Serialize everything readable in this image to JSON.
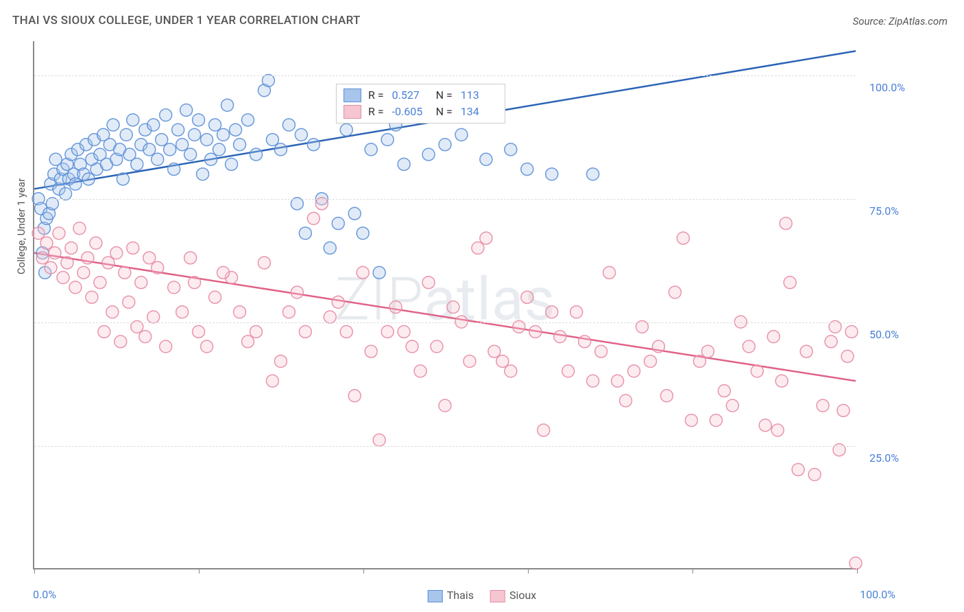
{
  "title": "THAI VS SIOUX COLLEGE, UNDER 1 YEAR CORRELATION CHART",
  "source": "Source: ZipAtlas.com",
  "y_axis_title": "College, Under 1 year",
  "watermark": "ZIPatlas",
  "chart": {
    "type": "scatter",
    "xlim": [
      0,
      100
    ],
    "ylim": [
      0,
      107
    ],
    "y_ticks": [
      25,
      50,
      75,
      100
    ],
    "y_tick_labels": [
      "25.0%",
      "50.0%",
      "75.0%",
      "100.0%"
    ],
    "x_ticks": [
      0,
      20,
      40,
      60,
      80,
      100
    ],
    "x_labels": {
      "min": "0.0%",
      "max": "100.0%"
    },
    "grid_color": "#dddddd",
    "axis_color": "#888888",
    "tick_label_color": "#4a7fd8",
    "background_color": "#ffffff",
    "marker_radius": 9,
    "marker_opacity": 0.35,
    "marker_stroke_opacity": 0.9,
    "line_width": 2.5,
    "series": [
      {
        "name": "Thais",
        "color_fill": "#a8c5ec",
        "color_stroke": "#5b8fd6",
        "line_color": "#2b63b6",
        "R": "0.527",
        "N": "113",
        "trend": {
          "x1": 0,
          "y1": 77,
          "x2": 100,
          "y2": 105
        },
        "points": [
          [
            0.5,
            75
          ],
          [
            0.8,
            73
          ],
          [
            1,
            64
          ],
          [
            1.2,
            69
          ],
          [
            1.3,
            60
          ],
          [
            1.5,
            71
          ],
          [
            1.8,
            72
          ],
          [
            2,
            78
          ],
          [
            2.2,
            74
          ],
          [
            2.4,
            80
          ],
          [
            2.6,
            83
          ],
          [
            3,
            77
          ],
          [
            3.2,
            79
          ],
          [
            3.5,
            81
          ],
          [
            3.8,
            76
          ],
          [
            4,
            82
          ],
          [
            4.2,
            79
          ],
          [
            4.5,
            84
          ],
          [
            4.8,
            80
          ],
          [
            5,
            78
          ],
          [
            5.3,
            85
          ],
          [
            5.6,
            82
          ],
          [
            6,
            80
          ],
          [
            6.3,
            86
          ],
          [
            6.6,
            79
          ],
          [
            7,
            83
          ],
          [
            7.3,
            87
          ],
          [
            7.6,
            81
          ],
          [
            8,
            84
          ],
          [
            8.4,
            88
          ],
          [
            8.8,
            82
          ],
          [
            9.2,
            86
          ],
          [
            9.6,
            90
          ],
          [
            10,
            83
          ],
          [
            10.4,
            85
          ],
          [
            10.8,
            79
          ],
          [
            11.2,
            88
          ],
          [
            11.6,
            84
          ],
          [
            12,
            91
          ],
          [
            12.5,
            82
          ],
          [
            13,
            86
          ],
          [
            13.5,
            89
          ],
          [
            14,
            85
          ],
          [
            14.5,
            90
          ],
          [
            15,
            83
          ],
          [
            15.5,
            87
          ],
          [
            16,
            92
          ],
          [
            16.5,
            85
          ],
          [
            17,
            81
          ],
          [
            17.5,
            89
          ],
          [
            18,
            86
          ],
          [
            18.5,
            93
          ],
          [
            19,
            84
          ],
          [
            19.5,
            88
          ],
          [
            20,
            91
          ],
          [
            20.5,
            80
          ],
          [
            21,
            87
          ],
          [
            21.5,
            83
          ],
          [
            22,
            90
          ],
          [
            22.5,
            85
          ],
          [
            23,
            88
          ],
          [
            23.5,
            94
          ],
          [
            24,
            82
          ],
          [
            24.5,
            89
          ],
          [
            25,
            86
          ],
          [
            26,
            91
          ],
          [
            27,
            84
          ],
          [
            28,
            97
          ],
          [
            28.5,
            99
          ],
          [
            29,
            87
          ],
          [
            30,
            85
          ],
          [
            31,
            90
          ],
          [
            32,
            74
          ],
          [
            32.5,
            88
          ],
          [
            33,
            68
          ],
          [
            34,
            86
          ],
          [
            35,
            75
          ],
          [
            36,
            65
          ],
          [
            37,
            70
          ],
          [
            38,
            89
          ],
          [
            39,
            72
          ],
          [
            40,
            68
          ],
          [
            41,
            85
          ],
          [
            42,
            60
          ],
          [
            43,
            87
          ],
          [
            44,
            90
          ],
          [
            45,
            82
          ],
          [
            48,
            84
          ],
          [
            50,
            86
          ],
          [
            52,
            88
          ],
          [
            55,
            83
          ],
          [
            58,
            85
          ],
          [
            60,
            81
          ],
          [
            63,
            80
          ],
          [
            68,
            80
          ]
        ]
      },
      {
        "name": "Sioux",
        "color_fill": "#f5c6d0",
        "color_stroke": "#e58ba3",
        "line_color": "#e06287",
        "R": "-0.605",
        "N": "134",
        "trend": {
          "x1": 0,
          "y1": 64,
          "x2": 100,
          "y2": 38
        },
        "points": [
          [
            0.5,
            68
          ],
          [
            1,
            63
          ],
          [
            1.5,
            66
          ],
          [
            2,
            61
          ],
          [
            2.5,
            64
          ],
          [
            3,
            68
          ],
          [
            3.5,
            59
          ],
          [
            4,
            62
          ],
          [
            4.5,
            65
          ],
          [
            5,
            57
          ],
          [
            5.5,
            69
          ],
          [
            6,
            60
          ],
          [
            6.5,
            63
          ],
          [
            7,
            55
          ],
          [
            7.5,
            66
          ],
          [
            8,
            58
          ],
          [
            8.5,
            48
          ],
          [
            9,
            62
          ],
          [
            9.5,
            52
          ],
          [
            10,
            64
          ],
          [
            10.5,
            46
          ],
          [
            11,
            60
          ],
          [
            11.5,
            54
          ],
          [
            12,
            65
          ],
          [
            12.5,
            49
          ],
          [
            13,
            58
          ],
          [
            13.5,
            47
          ],
          [
            14,
            63
          ],
          [
            14.5,
            51
          ],
          [
            15,
            61
          ],
          [
            16,
            45
          ],
          [
            17,
            57
          ],
          [
            18,
            52
          ],
          [
            19,
            63
          ],
          [
            20,
            48
          ],
          [
            22,
            55
          ],
          [
            24,
            59
          ],
          [
            26,
            46
          ],
          [
            28,
            62
          ],
          [
            30,
            42
          ],
          [
            32,
            56
          ],
          [
            34,
            71
          ],
          [
            35,
            74
          ],
          [
            36,
            51
          ],
          [
            38,
            48
          ],
          [
            40,
            60
          ],
          [
            42,
            26
          ],
          [
            44,
            53
          ],
          [
            45,
            48
          ],
          [
            46,
            45
          ],
          [
            48,
            58
          ],
          [
            50,
            33
          ],
          [
            52,
            50
          ],
          [
            54,
            65
          ],
          [
            55,
            67
          ],
          [
            56,
            44
          ],
          [
            58,
            40
          ],
          [
            60,
            55
          ],
          [
            62,
            28
          ],
          [
            64,
            47
          ],
          [
            66,
            52
          ],
          [
            67,
            46
          ],
          [
            68,
            38
          ],
          [
            70,
            60
          ],
          [
            72,
            34
          ],
          [
            74,
            49
          ],
          [
            75,
            42
          ],
          [
            76,
            45
          ],
          [
            78,
            56
          ],
          [
            79,
            67
          ],
          [
            80,
            30
          ],
          [
            82,
            44
          ],
          [
            84,
            36
          ],
          [
            85,
            33
          ],
          [
            86,
            50
          ],
          [
            87,
            45
          ],
          [
            88,
            40
          ],
          [
            89,
            29
          ],
          [
            90,
            47
          ],
          [
            91,
            38
          ],
          [
            92,
            58
          ],
          [
            93,
            20
          ],
          [
            94,
            44
          ],
          [
            95,
            19
          ],
          [
            96,
            33
          ],
          [
            97,
            46
          ],
          [
            98,
            24
          ],
          [
            98.5,
            32
          ],
          [
            99,
            43
          ],
          [
            99.5,
            48
          ],
          [
            100,
            1
          ],
          [
            97.5,
            49
          ],
          [
            91.5,
            70
          ],
          [
            73,
            40
          ],
          [
            63,
            52
          ],
          [
            59,
            49
          ],
          [
            53,
            42
          ],
          [
            47,
            40
          ],
          [
            41,
            44
          ],
          [
            37,
            54
          ],
          [
            33,
            48
          ],
          [
            29,
            38
          ],
          [
            25,
            52
          ],
          [
            21,
            45
          ],
          [
            19.5,
            58
          ],
          [
            23,
            60
          ],
          [
            27,
            48
          ],
          [
            31,
            52
          ],
          [
            39,
            35
          ],
          [
            43,
            48
          ],
          [
            49,
            45
          ],
          [
            51,
            53
          ],
          [
            57,
            42
          ],
          [
            61,
            48
          ],
          [
            65,
            40
          ],
          [
            69,
            44
          ],
          [
            71,
            38
          ],
          [
            77,
            35
          ],
          [
            81,
            42
          ],
          [
            83,
            30
          ],
          [
            90.5,
            28
          ]
        ]
      }
    ]
  },
  "bottom_legend": [
    "Thais",
    "Sioux"
  ]
}
